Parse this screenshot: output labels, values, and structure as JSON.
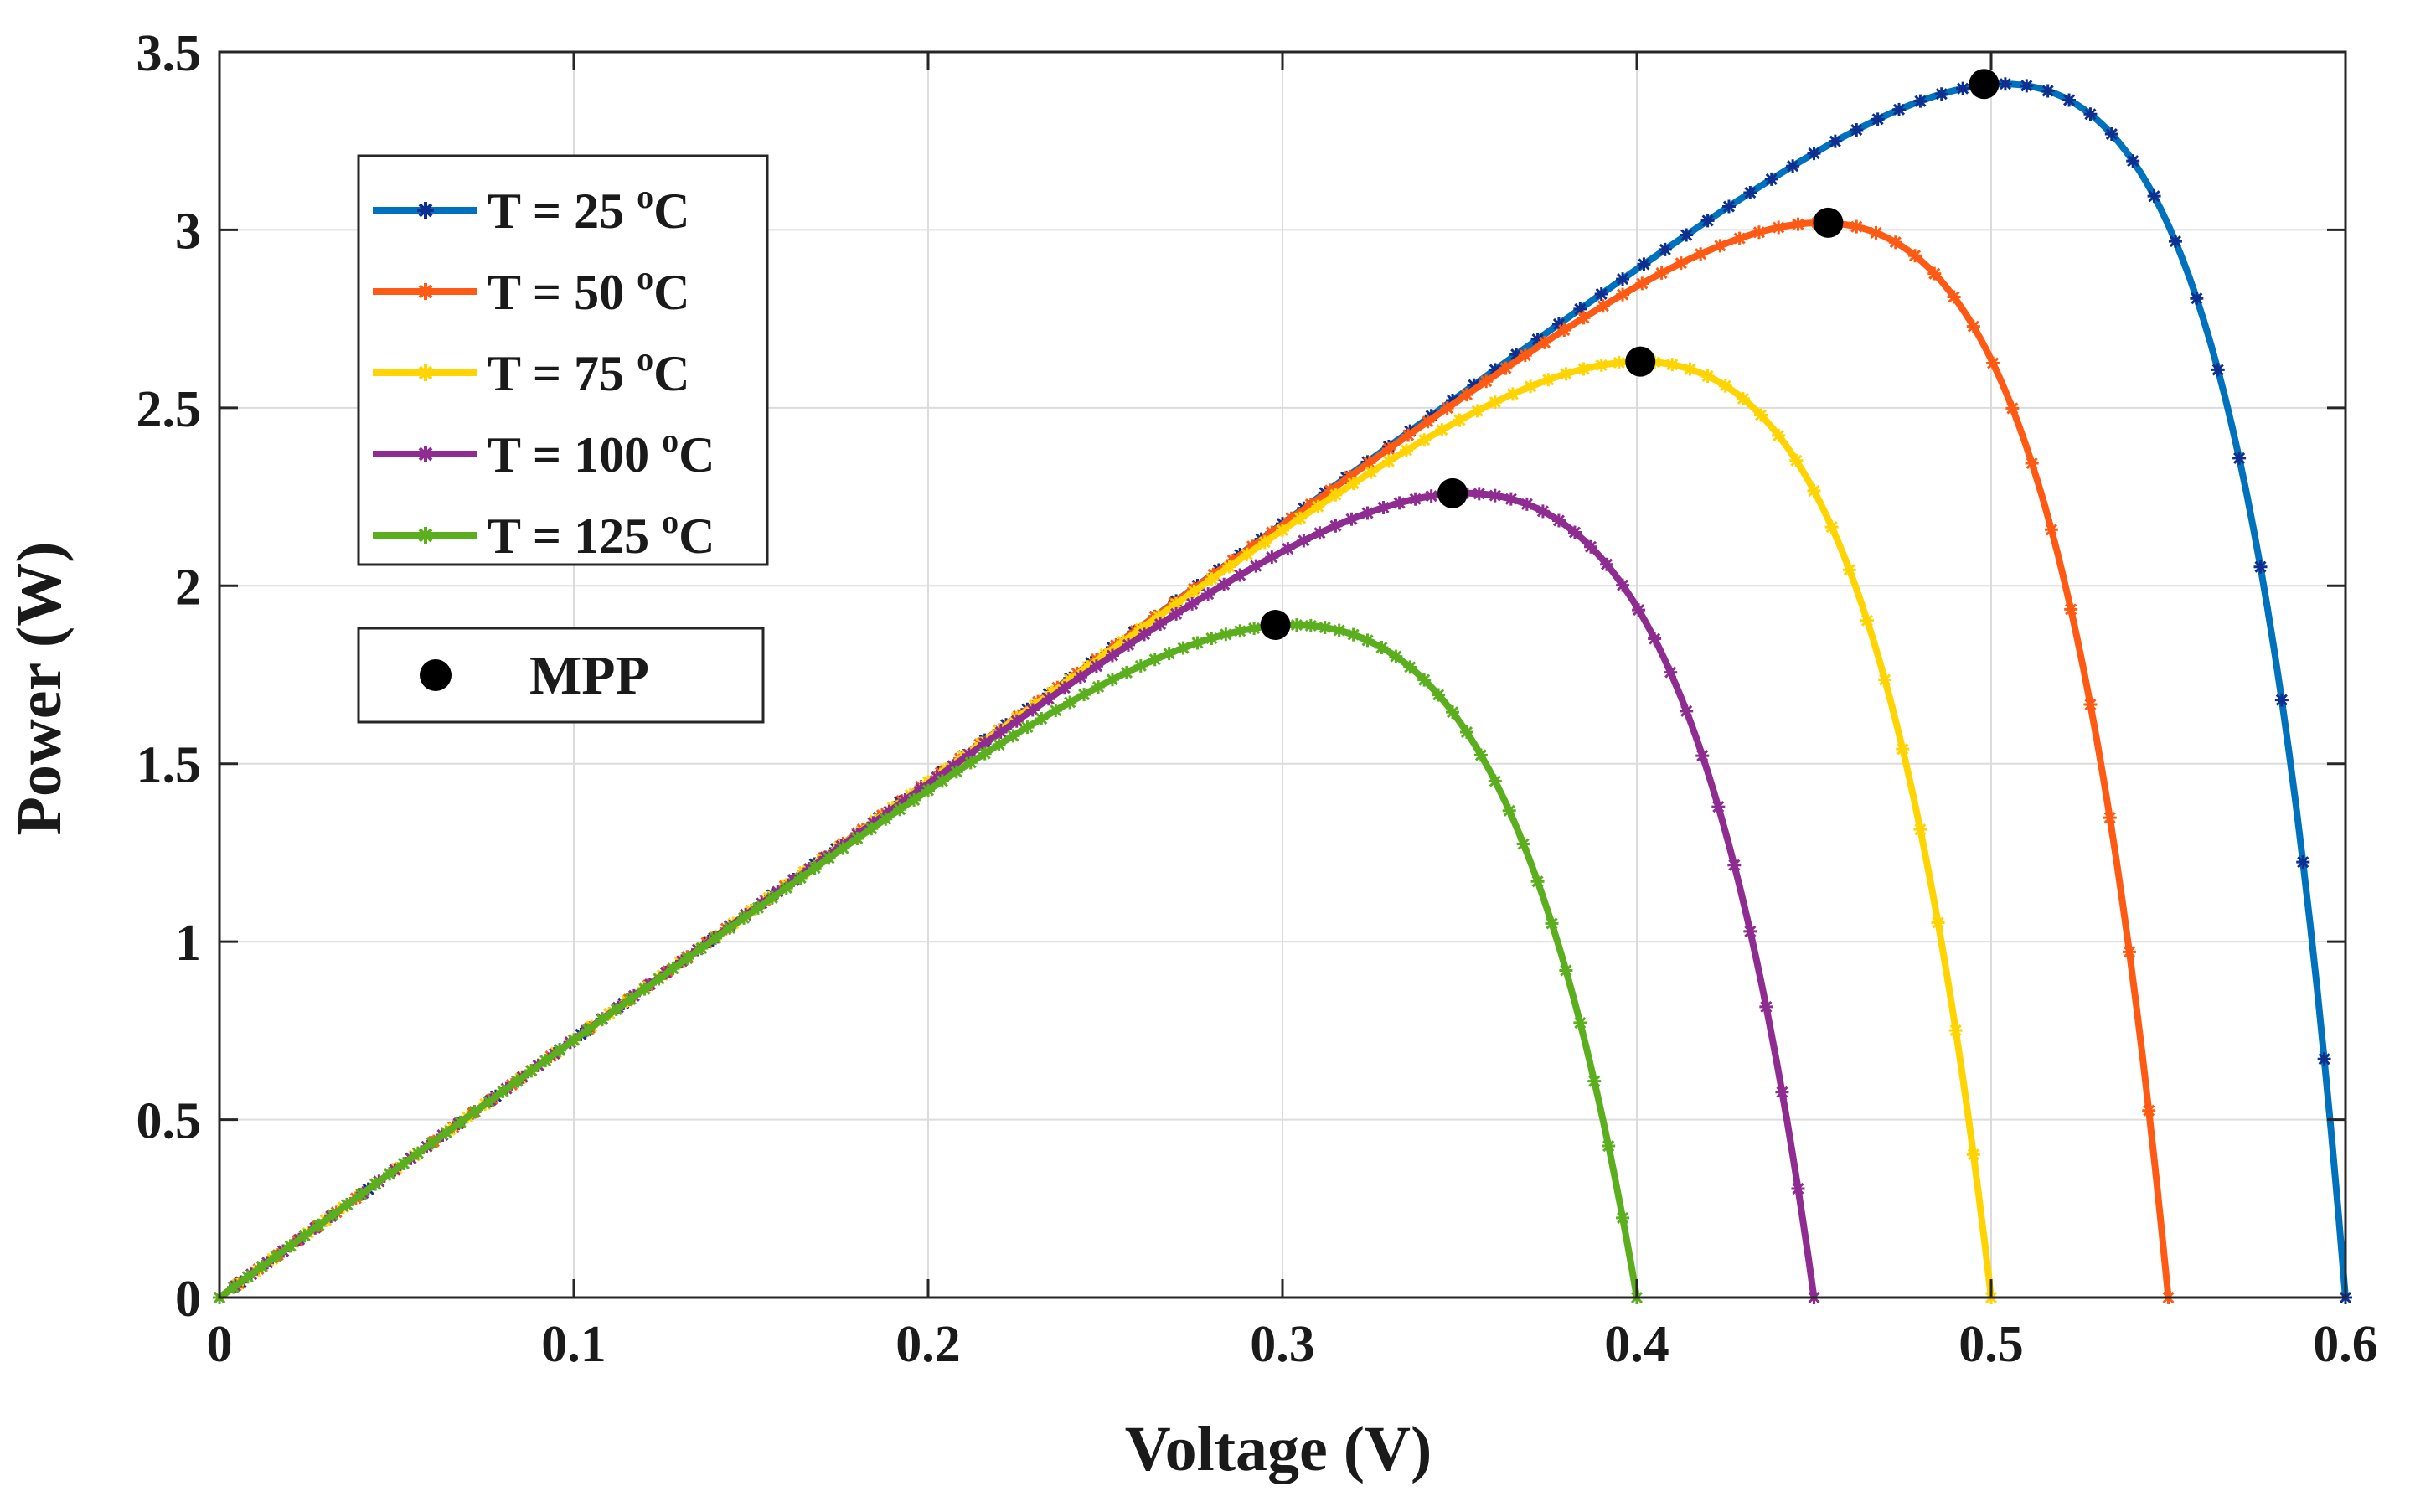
{
  "chart_data": {
    "type": "line",
    "title": "",
    "xlabel": "Voltage (V)",
    "ylabel": "Power (W)",
    "xlim": [
      0,
      0.6
    ],
    "ylim": [
      0,
      3.5
    ],
    "xticks": [
      0,
      0.1,
      0.2,
      0.3,
      0.4,
      0.5,
      0.6
    ],
    "xtick_labels": [
      "0",
      "0.1",
      "0.2",
      "0.3",
      "0.4",
      "0.5",
      "0.6"
    ],
    "yticks": [
      0,
      0.5,
      1,
      1.5,
      2,
      2.5,
      3,
      3.5
    ],
    "ytick_labels": [
      "0",
      "0.5",
      "1",
      "1.5",
      "2",
      "2.5",
      "3",
      "3.5"
    ],
    "grid": true,
    "legend_position": "upper-left",
    "series": [
      {
        "name": "T = 25",
        "unit_sup": "o",
        "unit_suffix": "C",
        "color": "#0072BD",
        "marker_color": "#0D2F8F",
        "voc": 0.6,
        "mpp": [
          0.498,
          3.41
        ]
      },
      {
        "name": "T = 50",
        "unit_sup": "o",
        "unit_suffix": "C",
        "color": "#FF5A14",
        "marker_color": "#FF5A14",
        "voc": 0.55,
        "mpp": [
          0.454,
          3.02
        ]
      },
      {
        "name": "T = 75",
        "unit_sup": "o",
        "unit_suffix": "C",
        "color": "#FFD400",
        "marker_color": "#FFD400",
        "voc": 0.5,
        "mpp": [
          0.401,
          2.63
        ]
      },
      {
        "name": "T = 100",
        "unit_sup": "o",
        "unit_suffix": "C",
        "color": "#8E2C91",
        "marker_color": "#8E2C91",
        "voc": 0.45,
        "mpp": [
          0.348,
          2.26
        ]
      },
      {
        "name": "T = 125",
        "unit_sup": "o",
        "unit_suffix": "C",
        "color": "#5BAF1E",
        "marker_color": "#5BAF1E",
        "voc": 0.4,
        "mpp": [
          0.298,
          1.89
        ]
      }
    ],
    "mpp_legend_label": "MPP",
    "mpp_color": "#000000"
  }
}
